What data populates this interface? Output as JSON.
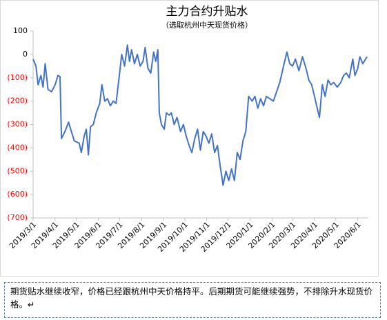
{
  "chart_data": {
    "type": "line",
    "title": "主力合约升贴水",
    "subtitle": "（选取杭州中天现货价格）",
    "color": "#4472c4",
    "negative_tick_color": "#ff0000",
    "xlim": [
      "2019/3/1",
      "2020/6/15"
    ],
    "xticks": [
      "2019/3/1",
      "2019/4/1",
      "2019/5/1",
      "2019/6/1",
      "2019/7/1",
      "2019/8/1",
      "2019/9/1",
      "2019/10/1",
      "2019/11/1",
      "2019/12/1",
      "2020/1/1",
      "2020/2/1",
      "2020/3/1",
      "2020/4/1",
      "2020/5/1",
      "2020/6/1"
    ],
    "ylim": [
      -700,
      100
    ],
    "yticks": [
      100,
      0,
      {
        "value": -100,
        "label": "(100)"
      },
      {
        "value": -200,
        "label": "(200)"
      },
      {
        "value": -300,
        "label": "(300)"
      },
      {
        "value": -400,
        "label": "(400)"
      },
      {
        "value": -500,
        "label": "(500)"
      },
      {
        "value": -600,
        "label": "(600)"
      },
      {
        "value": -700,
        "label": "(700)"
      }
    ],
    "x": [
      "2019/3/1",
      "2019/3/5",
      "2019/3/8",
      "2019/3/12",
      "2019/3/15",
      "2019/3/18",
      "2019/3/22",
      "2019/3/27",
      "2019/4/1",
      "2019/4/5",
      "2019/4/8",
      "2019/4/10",
      "2019/4/15",
      "2019/4/20",
      "2019/4/24",
      "2019/4/28",
      "2019/5/5",
      "2019/5/8",
      "2019/5/12",
      "2019/5/15",
      "2019/5/18",
      "2019/5/21",
      "2019/5/25",
      "2019/5/29",
      "2019/6/3",
      "2019/6/6",
      "2019/6/10",
      "2019/6/14",
      "2019/6/18",
      "2019/6/22",
      "2019/6/26",
      "2019/7/1",
      "2019/7/4",
      "2019/7/8",
      "2019/7/12",
      "2019/7/15",
      "2019/7/18",
      "2019/7/22",
      "2019/7/26",
      "2019/7/30",
      "2019/8/3",
      "2019/8/6",
      "2019/8/10",
      "2019/8/14",
      "2019/8/18",
      "2019/8/21",
      "2019/8/24",
      "2019/8/26",
      "2019/8/29",
      "2019/9/2",
      "2019/9/5",
      "2019/9/9",
      "2019/9/12",
      "2019/9/16",
      "2019/9/20",
      "2019/9/25",
      "2019/9/29",
      "2019/10/3",
      "2019/10/7",
      "2019/10/11",
      "2019/10/15",
      "2019/10/19",
      "2019/10/23",
      "2019/10/27",
      "2019/10/31",
      "2019/11/4",
      "2019/11/8",
      "2019/11/12",
      "2019/11/16",
      "2019/11/20",
      "2019/11/24",
      "2019/11/28",
      "2019/12/2",
      "2019/12/6",
      "2019/12/10",
      "2019/12/14",
      "2019/12/18",
      "2019/12/22",
      "2019/12/26",
      "2019/12/30",
      "2020/1/4",
      "2020/1/8",
      "2020/1/12",
      "2020/1/16",
      "2020/1/20",
      "2020/1/24",
      "2020/2/3",
      "2020/2/12",
      "2020/2/18",
      "2020/2/22",
      "2020/2/26",
      "2020/3/1",
      "2020/3/5",
      "2020/3/10",
      "2020/3/15",
      "2020/3/20",
      "2020/3/24",
      "2020/3/28",
      "2020/4/1",
      "2020/4/4",
      "2020/4/8",
      "2020/4/12",
      "2020/4/16",
      "2020/4/20",
      "2020/4/24",
      "2020/4/28",
      "2020/5/3",
      "2020/5/8",
      "2020/5/12",
      "2020/5/16",
      "2020/5/20",
      "2020/5/25",
      "2020/5/28",
      "2020/6/1",
      "2020/6/4",
      "2020/6/8",
      "2020/6/12",
      "2020/6/14"
    ],
    "values": [
      -20,
      -50,
      -130,
      -90,
      -140,
      -40,
      -150,
      -160,
      -130,
      -90,
      -95,
      -360,
      -330,
      -290,
      -330,
      -370,
      -380,
      -420,
      -350,
      -320,
      -430,
      -310,
      -300,
      -250,
      -210,
      -130,
      -200,
      -190,
      -220,
      -200,
      -210,
      -80,
      0,
      -50,
      40,
      -30,
      20,
      -40,
      0,
      -50,
      -30,
      30,
      -60,
      -80,
      10,
      -30,
      20,
      -250,
      -300,
      -320,
      -250,
      -260,
      -250,
      -300,
      -270,
      -330,
      -300,
      -350,
      -390,
      -420,
      -360,
      -320,
      -410,
      -330,
      -350,
      -380,
      -340,
      -420,
      -390,
      -480,
      -560,
      -500,
      -540,
      -490,
      -540,
      -420,
      -450,
      -370,
      -330,
      -180,
      -200,
      -180,
      -230,
      -190,
      -220,
      -180,
      -200,
      -120,
      -40,
      10,
      -40,
      -50,
      -20,
      -70,
      -10,
      -60,
      -110,
      -130,
      -180,
      -220,
      -270,
      -130,
      -180,
      -110,
      -130,
      -120,
      -140,
      -120,
      -90,
      -80,
      -100,
      -20,
      -90,
      -60,
      -10,
      -40,
      -20,
      -10
    ]
  },
  "note": "期货贴水继续收窄，价格已经跟杭州中天价格持平。后期期货可能继续强势，不排除升水现货价格。↵"
}
